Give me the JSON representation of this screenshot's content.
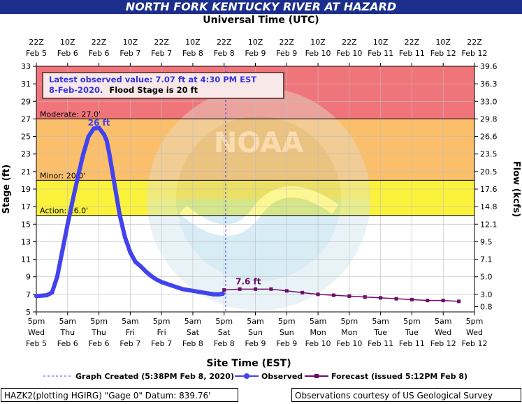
{
  "header": {
    "title": "NORTH FORK KENTUCKY RIVER AT HAZARD",
    "top_axis_title": "Universal Time (UTC)",
    "bottom_axis_title": "Site Time (EST)"
  },
  "info_box": {
    "line1": "Latest observed value: 7.07 ft at 4:30 PM EST",
    "line2a": "8-Feb-2020.",
    "line2b": "Flood Stage is 20 ft"
  },
  "legend": {
    "created": "Graph Created (5:38PM Feb 8, 2020)",
    "observed": "Observed",
    "forecast": "Forecast (issued 5:12PM Feb 8)"
  },
  "footer": {
    "left": "HAZK2(plotting HGIRG) \"Gage 0\" Datum: 839.76'",
    "right": "Observations courtesy of US Geological Survey"
  },
  "watermark": {
    "text": "NOAA"
  },
  "colors": {
    "major": "#f0757b",
    "moderate": "#fbbf6b",
    "minor": "#fbf23c",
    "observed": "#4242ef",
    "forecast": "#6e0b6b",
    "banner": "#1c2e8c"
  },
  "chart_data": {
    "type": "line",
    "ylabel": "Stage (ft)",
    "y2label": "Flow (kcfs)",
    "ylim": [
      5,
      33
    ],
    "y_ticks": [
      "5",
      "7",
      "9",
      "11",
      "13",
      "15",
      "17",
      "19",
      "21",
      "23",
      "25",
      "27",
      "29",
      "31",
      "33"
    ],
    "y2_ticks": [
      {
        "stage": 5.6,
        "label": "0.8"
      },
      {
        "stage": 7,
        "label": "3.0"
      },
      {
        "stage": 9,
        "label": "5.0"
      },
      {
        "stage": 11,
        "label": "7.1"
      },
      {
        "stage": 13,
        "label": "9.5"
      },
      {
        "stage": 15,
        "label": "12.1"
      },
      {
        "stage": 17,
        "label": "14.8"
      },
      {
        "stage": 19,
        "label": "17.6"
      },
      {
        "stage": 21,
        "label": "20.5"
      },
      {
        "stage": 23,
        "label": "23.5"
      },
      {
        "stage": 25,
        "label": "26.6"
      },
      {
        "stage": 27,
        "label": "29.8"
      },
      {
        "stage": 29,
        "label": "33.0"
      },
      {
        "stage": 31,
        "label": "36.3"
      },
      {
        "stage": 33,
        "label": "39.6"
      }
    ],
    "xlim": [
      0,
      168
    ],
    "x_unit": "hours since 5pm Wed Feb 5 (EST)",
    "bottom_ticks": [
      {
        "x": 0,
        "l1": "5pm",
        "l2": "Wed",
        "l3": "Feb 5"
      },
      {
        "x": 12,
        "l1": "5am",
        "l2": "Thu",
        "l3": "Feb 6"
      },
      {
        "x": 24,
        "l1": "5pm",
        "l2": "Thu",
        "l3": "Feb 6"
      },
      {
        "x": 36,
        "l1": "5am",
        "l2": "Fri",
        "l3": "Feb 7"
      },
      {
        "x": 48,
        "l1": "5pm",
        "l2": "Fri",
        "l3": "Feb 7"
      },
      {
        "x": 60,
        "l1": "5am",
        "l2": "Sat",
        "l3": "Feb 8"
      },
      {
        "x": 72,
        "l1": "5pm",
        "l2": "Sat",
        "l3": "Feb 8"
      },
      {
        "x": 84,
        "l1": "5am",
        "l2": "Sun",
        "l3": "Feb 9"
      },
      {
        "x": 96,
        "l1": "5pm",
        "l2": "Sun",
        "l3": "Feb 9"
      },
      {
        "x": 108,
        "l1": "5am",
        "l2": "Mon",
        "l3": "Feb 10"
      },
      {
        "x": 120,
        "l1": "5pm",
        "l2": "Mon",
        "l3": "Feb 10"
      },
      {
        "x": 132,
        "l1": "5am",
        "l2": "Tue",
        "l3": "Feb 11"
      },
      {
        "x": 144,
        "l1": "5pm",
        "l2": "Tue",
        "l3": "Feb 11"
      },
      {
        "x": 156,
        "l1": "5am",
        "l2": "Wed",
        "l3": "Feb 12"
      },
      {
        "x": 168,
        "l1": "5pm",
        "l2": "Wed",
        "l3": "Feb 12"
      }
    ],
    "top_ticks": [
      {
        "x": 0,
        "l1": "22Z",
        "l2": "Feb 5"
      },
      {
        "x": 12,
        "l1": "10Z",
        "l2": "Feb 6"
      },
      {
        "x": 24,
        "l1": "22Z",
        "l2": "Feb 6"
      },
      {
        "x": 36,
        "l1": "10Z",
        "l2": "Feb 7"
      },
      {
        "x": 48,
        "l1": "22Z",
        "l2": "Feb 7"
      },
      {
        "x": 60,
        "l1": "10Z",
        "l2": "Feb 8"
      },
      {
        "x": 72,
        "l1": "22Z",
        "l2": "Feb 8"
      },
      {
        "x": 84,
        "l1": "10Z",
        "l2": "Feb 9"
      },
      {
        "x": 96,
        "l1": "22Z",
        "l2": "Feb 9"
      },
      {
        "x": 108,
        "l1": "10Z",
        "l2": "Feb 10"
      },
      {
        "x": 120,
        "l1": "22Z",
        "l2": "Feb 10"
      },
      {
        "x": 132,
        "l1": "10Z",
        "l2": "Feb 11"
      },
      {
        "x": 144,
        "l1": "22Z",
        "l2": "Feb 11"
      },
      {
        "x": 156,
        "l1": "10Z",
        "l2": "Feb 12"
      },
      {
        "x": 168,
        "l1": "22Z",
        "l2": "Feb 12"
      }
    ],
    "flood_bands": [
      {
        "name": "major",
        "from": 27,
        "to": 33
      },
      {
        "name": "moderate",
        "from": 20,
        "to": 27
      },
      {
        "name": "minor",
        "from": 16,
        "to": 20
      }
    ],
    "threshold_lines": [
      {
        "stage": 27,
        "label": "Moderate: 27.0'"
      },
      {
        "stage": 20,
        "label": "Minor: 20.0'"
      },
      {
        "stage": 16,
        "label": "Action: 16.0'"
      }
    ],
    "graph_created_x": 72.6,
    "observed": {
      "x": [
        0,
        4,
        6,
        8,
        10,
        12,
        14,
        16,
        18,
        20,
        22,
        24,
        26,
        27,
        28,
        30,
        32,
        34,
        36,
        38,
        40,
        42,
        44,
        46,
        48,
        50,
        52,
        54,
        56,
        58,
        60,
        62,
        64,
        66,
        68,
        70,
        71.5
      ],
      "y": [
        6.8,
        6.9,
        7.2,
        9.0,
        12.0,
        15.0,
        17.8,
        20.5,
        23.0,
        25.0,
        25.9,
        26.0,
        25.2,
        24.5,
        23.0,
        19.5,
        16.0,
        13.5,
        11.8,
        10.7,
        10.2,
        9.6,
        9.1,
        8.7,
        8.4,
        8.2,
        8.0,
        7.8,
        7.6,
        7.5,
        7.4,
        7.3,
        7.2,
        7.1,
        7.0,
        7.0,
        7.07
      ],
      "peak_label": "26 ft"
    },
    "forecast": {
      "x": [
        72,
        78,
        84,
        90,
        96,
        102,
        108,
        114,
        120,
        126,
        132,
        138,
        144,
        150,
        156,
        162
      ],
      "y": [
        7.5,
        7.6,
        7.6,
        7.6,
        7.4,
        7.2,
        7.0,
        6.9,
        6.8,
        6.7,
        6.6,
        6.5,
        6.4,
        6.3,
        6.3,
        6.2
      ],
      "peak_label": "7.6 ft"
    }
  }
}
